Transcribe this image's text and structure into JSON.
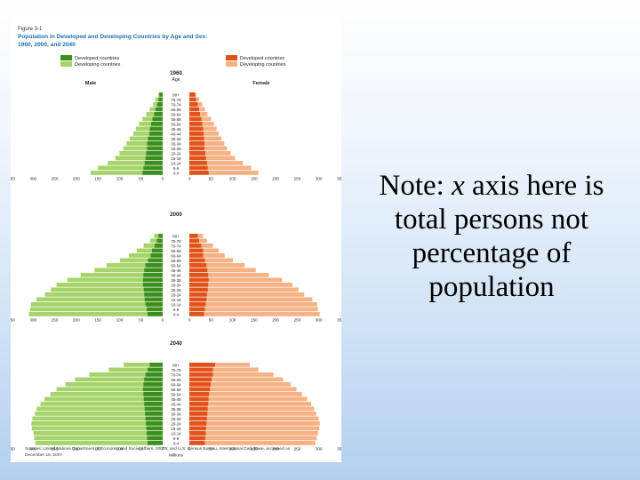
{
  "figure": {
    "label": "Figure 3-1",
    "title_line1": "Population in Developed and Developing Countries by Age and Sex:",
    "title_line2": "1960, 2000, and 2040",
    "source_line1": "Sources: United Nations Department of Economic and Social Affairs, 2007b; and U.S. Census Bureau, International Data Base, accessed on",
    "source_line2": "December 15, 2007.",
    "legend": {
      "male": [
        "Developed countries",
        "Developing countries"
      ],
      "female": [
        "Developed countries",
        "Developing countries"
      ]
    },
    "colors": {
      "male_developed": "#3b8f1c",
      "male_developing": "#a6d46a",
      "female_developed": "#e0521a",
      "female_developing": "#f6b184",
      "title": "#1f6fa8",
      "panel_title": "#000000"
    }
  },
  "note": {
    "part1": "Note: ",
    "italic": "x",
    "part2": " axis here is total persons not percentage of population"
  },
  "chart_data": [
    {
      "type": "bar",
      "title": "1960",
      "side_labels": {
        "left": "Male",
        "right": "Female",
        "axis": "Age"
      },
      "age_groups": [
        "80+",
        "75-79",
        "70-74",
        "65-69",
        "60-64",
        "55-59",
        "50-54",
        "45-49",
        "40-44",
        "35-39",
        "30-34",
        "25-29",
        "20-24",
        "15-19",
        "10-14",
        "5-9",
        "0-4"
      ],
      "xticks": [
        "350",
        "300",
        "250",
        "200",
        "150",
        "100",
        "50",
        "0",
        "50",
        "100",
        "150",
        "200",
        "250",
        "300",
        "350"
      ],
      "xlim": [
        -350,
        350
      ],
      "series": [
        {
          "name": "Developed countries",
          "sex": "Male",
          "values": [
            8,
            10,
            13,
            17,
            20,
            24,
            27,
            30,
            31,
            34,
            36,
            36,
            38,
            40,
            42,
            45,
            47
          ]
        },
        {
          "name": "Developing countries",
          "sex": "Male",
          "values": [
            2,
            7,
            9,
            13,
            18,
            23,
            28,
            32,
            37,
            42,
            48,
            55,
            62,
            70,
            85,
            105,
            120
          ]
        },
        {
          "name": "Developed countries",
          "sex": "Female",
          "values": [
            14,
            16,
            20,
            23,
            25,
            28,
            30,
            32,
            33,
            34,
            35,
            35,
            37,
            39,
            41,
            43,
            45
          ]
        },
        {
          "name": "Developing countries",
          "sex": "Female",
          "values": [
            2,
            7,
            10,
            13,
            17,
            22,
            27,
            31,
            35,
            40,
            46,
            52,
            59,
            67,
            83,
            100,
            115
          ]
        }
      ]
    },
    {
      "type": "bar",
      "title": "2000",
      "age_groups": [
        "80+",
        "75-79",
        "70-74",
        "65-69",
        "60-64",
        "55-59",
        "50-54",
        "45-49",
        "40-44",
        "35-39",
        "30-34",
        "25-29",
        "20-24",
        "15-19",
        "10-14",
        "5-9",
        "0-4"
      ],
      "xticks": [
        "350",
        "300",
        "250",
        "200",
        "150",
        "100",
        "50",
        "0",
        "50",
        "100",
        "150",
        "200",
        "250",
        "300",
        "350"
      ],
      "xlim": [
        -350,
        350
      ],
      "series": [
        {
          "name": "Developed countries",
          "sex": "Male",
          "values": [
            10,
            14,
            19,
            25,
            28,
            34,
            40,
            43,
            45,
            46,
            46,
            44,
            43,
            42,
            40,
            37,
            35
          ]
        },
        {
          "name": "Developing countries",
          "sex": "Male",
          "values": [
            10,
            15,
            25,
            35,
            50,
            65,
            90,
            115,
            145,
            175,
            200,
            215,
            230,
            250,
            265,
            270,
            275
          ]
        },
        {
          "name": "Developed countries",
          "sex": "Female",
          "values": [
            20,
            23,
            28,
            32,
            32,
            36,
            40,
            42,
            44,
            45,
            44,
            43,
            41,
            40,
            38,
            36,
            34
          ]
        },
        {
          "name": "Developing countries",
          "sex": "Female",
          "values": [
            12,
            18,
            27,
            36,
            50,
            65,
            88,
            112,
            140,
            170,
            195,
            210,
            225,
            245,
            258,
            262,
            268
          ]
        }
      ]
    },
    {
      "type": "bar",
      "title": "2040",
      "age_groups": [
        "80+",
        "75-79",
        "70-74",
        "65-69",
        "60-64",
        "55-59",
        "50-54",
        "45-49",
        "40-44",
        "35-39",
        "30-34",
        "25-29",
        "20-24",
        "15-19",
        "10-14",
        "5-9",
        "0-4"
      ],
      "xticks": [
        "350",
        "300",
        "250",
        "200",
        "150",
        "100",
        "50",
        "0",
        "50",
        "100",
        "150",
        "200",
        "250",
        "300",
        "350"
      ],
      "xlim": [
        -350,
        350
      ],
      "xlabel": "Millions",
      "series": [
        {
          "name": "Developed countries",
          "sex": "Male",
          "values": [
            30,
            35,
            40,
            43,
            45,
            46,
            45,
            44,
            43,
            42,
            41,
            40,
            39,
            38,
            37,
            36,
            35
          ]
        },
        {
          "name": "Developing countries",
          "sex": "Male",
          "values": [
            60,
            90,
            130,
            160,
            180,
            200,
            215,
            230,
            240,
            250,
            255,
            262,
            265,
            265,
            262,
            262,
            260
          ]
        },
        {
          "name": "Developed countries",
          "sex": "Female",
          "values": [
            60,
            55,
            55,
            52,
            50,
            48,
            46,
            45,
            44,
            43,
            42,
            41,
            40,
            39,
            38,
            37,
            36
          ]
        },
        {
          "name": "Developing countries",
          "sex": "Female",
          "values": [
            80,
            105,
            140,
            165,
            185,
            200,
            215,
            228,
            238,
            246,
            252,
            258,
            262,
            262,
            260,
            258,
            256
          ]
        }
      ]
    }
  ]
}
